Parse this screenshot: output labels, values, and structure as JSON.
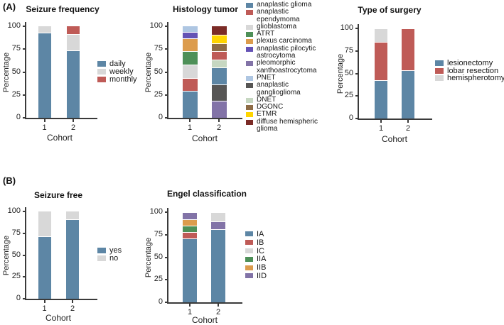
{
  "figure_labels": {
    "panel_a": "(A)",
    "panel_b": "(B)"
  },
  "palette": {
    "blue": "#5D86A5",
    "red": "#BF5B57",
    "light_gray": "#D8D8D8",
    "green": "#4E9058",
    "orange": "#DC9C4D",
    "vivid_purple": "#6452B5",
    "muted_purple": "#8273A7",
    "light_blue": "#AEC6E2",
    "dark_gray": "#575655",
    "pale_green": "#C6D7C1",
    "brown": "#8E6C46",
    "yellow": "#FFD500",
    "maroon": "#7B2B26"
  },
  "chart_data": [
    {
      "id": "seizure-frequency",
      "panel": "A",
      "type": "bar",
      "stacked": true,
      "title": "Seizure frequency",
      "xlabel": "Cohort",
      "ylabel": "Percentage",
      "ylim": [
        0,
        100
      ],
      "yticks": [
        0,
        25,
        50,
        75,
        100
      ],
      "categories": [
        "1",
        "2"
      ],
      "grid": false,
      "legend_position": "right",
      "legend": [
        {
          "label": "daily",
          "color": "#5D86A5"
        },
        {
          "label": "weekly",
          "color": "#D8D8D8"
        },
        {
          "label": "monthly",
          "color": "#BF5B57"
        }
      ],
      "bars": [
        {
          "category": "1",
          "segments": [
            {
              "label": "daily",
              "value": 92
            },
            {
              "label": "weekly",
              "value": 8
            }
          ]
        },
        {
          "category": "2",
          "segments": [
            {
              "label": "daily",
              "value": 73
            },
            {
              "label": "weekly",
              "value": 18
            },
            {
              "label": "monthly",
              "value": 9
            }
          ]
        }
      ]
    },
    {
      "id": "histology-tumor",
      "panel": "A",
      "type": "bar",
      "stacked": true,
      "title": "Histology tumor",
      "xlabel": "Cohort",
      "ylabel": "Percentage",
      "ylim": [
        0,
        100
      ],
      "yticks": [
        0,
        25,
        50,
        75,
        100
      ],
      "categories": [
        "1",
        "2"
      ],
      "grid": false,
      "legend_position": "right",
      "legend": [
        {
          "label": "anaplastic glioma",
          "color": "#5D86A5"
        },
        {
          "label": "anaplastic ependymoma",
          "color": "#BF5B57"
        },
        {
          "label": "glioblastoma",
          "color": "#D8D8D8"
        },
        {
          "label": "ATRT",
          "color": "#4E9058"
        },
        {
          "label": "plexus carcinoma",
          "color": "#DC9C4D"
        },
        {
          "label": "anaplastic pilocytic astrocytoma",
          "color": "#6452B5"
        },
        {
          "label": "pleomorphic xanthoastrocytoma",
          "color": "#8273A7"
        },
        {
          "label": "PNET",
          "color": "#AEC6E2"
        },
        {
          "label": "anaplastic ganglioglioma",
          "color": "#575655"
        },
        {
          "label": "DNET",
          "color": "#C6D7C1"
        },
        {
          "label": "DGONC",
          "color": "#8E6C46"
        },
        {
          "label": "ETMR",
          "color": "#FFD500"
        },
        {
          "label": "diffuse hemispheric glioma",
          "color": "#7B2B26"
        }
      ],
      "bars": [
        {
          "category": "1",
          "segments": [
            {
              "label": "anaplastic glioma",
              "value": 29
            },
            {
              "label": "anaplastic ependymoma",
              "value": 14
            },
            {
              "label": "glioblastoma",
              "value": 14
            },
            {
              "label": "ATRT",
              "value": 15
            },
            {
              "label": "plexus carcinoma",
              "value": 14
            },
            {
              "label": "anaplastic pilocytic astrocytoma",
              "value": 7
            },
            {
              "label": "PNET",
              "value": 7
            }
          ]
        },
        {
          "category": "2",
          "segments": [
            {
              "label": "pleomorphic xanthoastrocytoma",
              "value": 18
            },
            {
              "label": "anaplastic ganglioglioma",
              "value": 18
            },
            {
              "label": "anaplastic glioma",
              "value": 18
            },
            {
              "label": "DNET",
              "value": 9
            },
            {
              "label": "anaplastic ependymoma",
              "value": 9
            },
            {
              "label": "DGONC",
              "value": 9
            },
            {
              "label": "ETMR",
              "value": 9
            },
            {
              "label": "diffuse hemispheric glioma",
              "value": 10
            }
          ]
        }
      ]
    },
    {
      "id": "type-of-surgery",
      "panel": "A",
      "type": "bar",
      "stacked": true,
      "title": "Type of surgery",
      "xlabel": "Cohort",
      "ylabel": "Percentage",
      "ylim": [
        0,
        100
      ],
      "yticks": [
        0,
        25,
        50,
        75,
        100
      ],
      "categories": [
        "1",
        "2"
      ],
      "grid": false,
      "legend_position": "right",
      "legend": [
        {
          "label": "lesionectomy",
          "color": "#5D86A5"
        },
        {
          "label": "lobar resection",
          "color": "#BF5B57"
        },
        {
          "label": "hemispherotomy",
          "color": "#D8D8D8"
        }
      ],
      "bars": [
        {
          "category": "1",
          "segments": [
            {
              "label": "lesionectomy",
              "value": 42
            },
            {
              "label": "lobar resection",
              "value": 42
            },
            {
              "label": "hemispherotomy",
              "value": 15
            }
          ]
        },
        {
          "category": "2",
          "segments": [
            {
              "label": "lesionectomy",
              "value": 53
            },
            {
              "label": "lobar resection",
              "value": 46
            }
          ]
        }
      ]
    },
    {
      "id": "seizure-free",
      "panel": "B",
      "type": "bar",
      "stacked": true,
      "title": "Seizure free",
      "xlabel": "Cohort",
      "ylabel": "Percentage",
      "ylim": [
        0,
        100
      ],
      "yticks": [
        0,
        25,
        50,
        75,
        100
      ],
      "categories": [
        "1",
        "2"
      ],
      "grid": false,
      "legend_position": "right",
      "legend": [
        {
          "label": "yes",
          "color": "#5D86A5"
        },
        {
          "label": "no",
          "color": "#D8D8D8"
        }
      ],
      "bars": [
        {
          "category": "1",
          "segments": [
            {
              "label": "yes",
              "value": 71
            },
            {
              "label": "no",
              "value": 29
            }
          ]
        },
        {
          "category": "2",
          "segments": [
            {
              "label": "yes",
              "value": 90
            },
            {
              "label": "no",
              "value": 10
            }
          ]
        }
      ]
    },
    {
      "id": "engel-classification",
      "panel": "B",
      "type": "bar",
      "stacked": true,
      "title": "Engel classification",
      "xlabel": "Cohort",
      "ylabel": "Percentage",
      "ylim": [
        0,
        100
      ],
      "yticks": [
        0,
        25,
        50,
        75,
        100
      ],
      "categories": [
        "1",
        "2"
      ],
      "grid": false,
      "legend_position": "right",
      "legend": [
        {
          "label": "IA",
          "color": "#5D86A5"
        },
        {
          "label": "IB",
          "color": "#BF5B57"
        },
        {
          "label": "IC",
          "color": "#D8D8D8"
        },
        {
          "label": "IIA",
          "color": "#4E9058"
        },
        {
          "label": "IIB",
          "color": "#DC9C4D"
        },
        {
          "label": "IID",
          "color": "#8273A7"
        }
      ],
      "bars": [
        {
          "category": "1",
          "segments": [
            {
              "label": "IA",
              "value": 70
            },
            {
              "label": "IB",
              "value": 7
            },
            {
              "label": "IIA",
              "value": 7
            },
            {
              "label": "IIB",
              "value": 7
            },
            {
              "label": "IID",
              "value": 8
            }
          ]
        },
        {
          "category": "2",
          "segments": [
            {
              "label": "IA",
              "value": 80
            },
            {
              "label": "IID",
              "value": 9
            },
            {
              "label": "IC",
              "value": 10
            }
          ]
        }
      ]
    }
  ]
}
